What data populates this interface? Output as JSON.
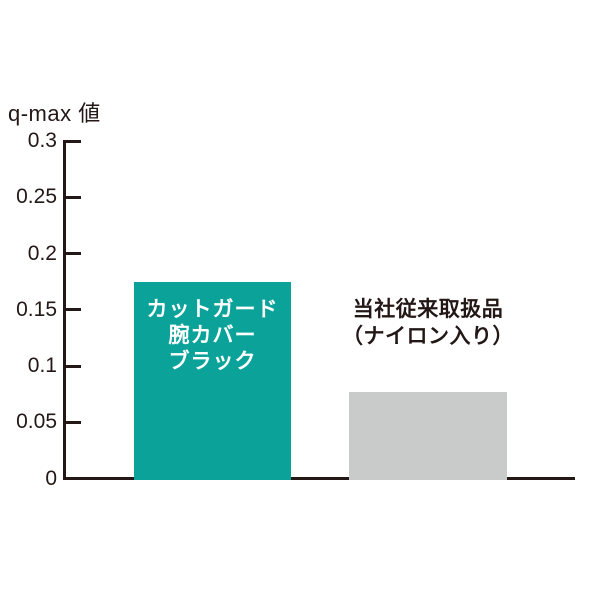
{
  "chart_data": {
    "type": "bar",
    "title": "",
    "ylabel": "q-max 値",
    "xlabel": "",
    "ylim": [
      0,
      0.3
    ],
    "yticks": [
      0,
      0.05,
      0.1,
      0.15,
      0.2,
      0.25,
      0.3
    ],
    "ytick_labels": [
      "0",
      "0.05",
      "0.1",
      "0.15",
      "0.2",
      "0.25",
      "0.3"
    ],
    "categories": [
      "カットガード 腕カバー ブラック",
      "当社従来取扱品（ナイロン入り）"
    ],
    "values": [
      0.175,
      0.077
    ],
    "bar_colors": [
      "#0BA29A",
      "#C9CACA"
    ],
    "grid": false,
    "legend": "none"
  },
  "axis": {
    "ylabel": "q-max 値",
    "line_color": "#231815"
  },
  "bars": [
    {
      "label_lines": [
        "カットガード",
        "腕カバー",
        "ブラック"
      ],
      "value": 0.175,
      "color": "#0BA29A",
      "label_color": "#FFFFFF",
      "label_placement": "inside"
    },
    {
      "label_lines": [
        "当社従来取扱品",
        "（ナイロン入り）"
      ],
      "value": 0.077,
      "color": "#C9CACA",
      "label_color": "#231815",
      "label_placement": "above"
    }
  ]
}
